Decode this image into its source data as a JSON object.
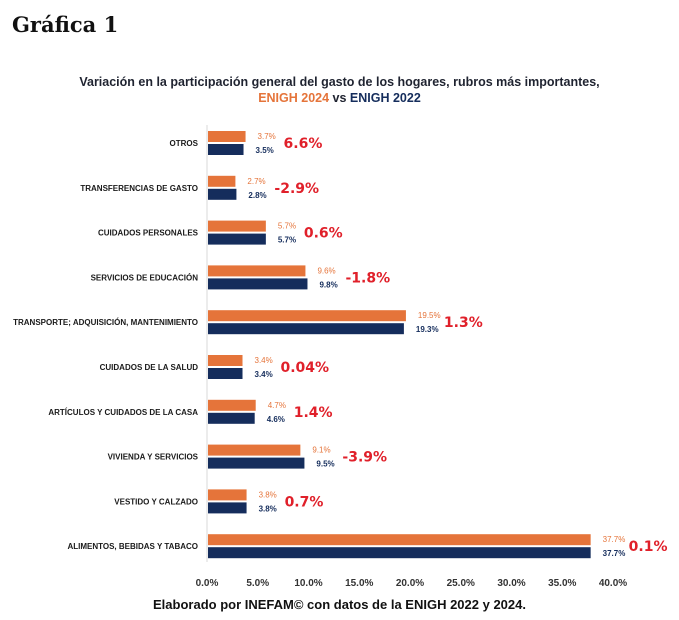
{
  "page": {
    "heading": "Gráfica 1",
    "footer": "Elaborado  por INEFAM© con datos de la ENIGH 2022 y 2024."
  },
  "colors": {
    "enigh_2024": "#e5743a",
    "enigh_2022": "#152d5c",
    "variation": "#e0202a",
    "category_text": "#1a1a1a",
    "axis_line": "#d9d9d9"
  },
  "chart_data": {
    "type": "bar",
    "orientation": "horizontal",
    "title": "Variación en la participación general del gasto de los hogares, rubros más importantes,",
    "subtitle_parts": [
      {
        "text": "ENIGH 2024",
        "series": "ENIGH 2024"
      },
      {
        "text": " vs ",
        "series": null
      },
      {
        "text": "ENIGH 2022",
        "series": "ENIGH 2022"
      }
    ],
    "xlabel": "",
    "ylabel": "",
    "xlim": [
      0,
      40
    ],
    "x_ticks": [
      "0.0%",
      "5.0%",
      "10.0%",
      "15.0%",
      "20.0%",
      "25.0%",
      "30.0%",
      "35.0%",
      "40.0%"
    ],
    "x_tick_values": [
      0,
      5,
      10,
      15,
      20,
      25,
      30,
      35,
      40
    ],
    "grid": false,
    "legend": "none (series identified by subtitle colors)",
    "categories": [
      "OTROS",
      "TRANSFERENCIAS DE GASTO",
      "CUIDADOS PERSONALES",
      "SERVICIOS DE EDUCACIÓN",
      "TRANSPORTE; ADQUISICIÓN, MANTENIMIENTO",
      "CUIDADOS DE LA SALUD",
      "ARTÍCULOS Y CUIDADOS DE LA CASA",
      "VIVIENDA Y SERVICIOS",
      "VESTIDO Y CALZADO",
      "ALIMENTOS, BEBIDAS Y TABACO"
    ],
    "series": [
      {
        "name": "ENIGH 2024",
        "values": [
          3.7,
          2.7,
          5.7,
          9.6,
          19.5,
          3.4,
          4.7,
          9.1,
          3.8,
          37.7
        ],
        "labels": [
          "3.7%",
          "2.7%",
          "5.7%",
          "9.6%",
          "19.5%",
          "3.4%",
          "4.7%",
          "9.1%",
          "3.8%",
          "37.7%"
        ]
      },
      {
        "name": "ENIGH 2022",
        "values": [
          3.5,
          2.8,
          5.7,
          9.8,
          19.3,
          3.4,
          4.6,
          9.5,
          3.8,
          37.7
        ],
        "labels": [
          "3.5%",
          "2.8%",
          "5.7%",
          "9.8%",
          "19.3%",
          "3.4%",
          "4.6%",
          "9.5%",
          "3.8%",
          "37.7%"
        ]
      }
    ],
    "variation_labels": [
      "6.6%",
      "-2.9%",
      "0.6%",
      "-1.8%",
      "1.3%",
      "0.04%",
      "1.4%",
      "-3.9%",
      "0.7%",
      "0.1%"
    ],
    "annotations": "Red percentage beside each category shows the variation ENIGH 2024 vs ENIGH 2022"
  }
}
